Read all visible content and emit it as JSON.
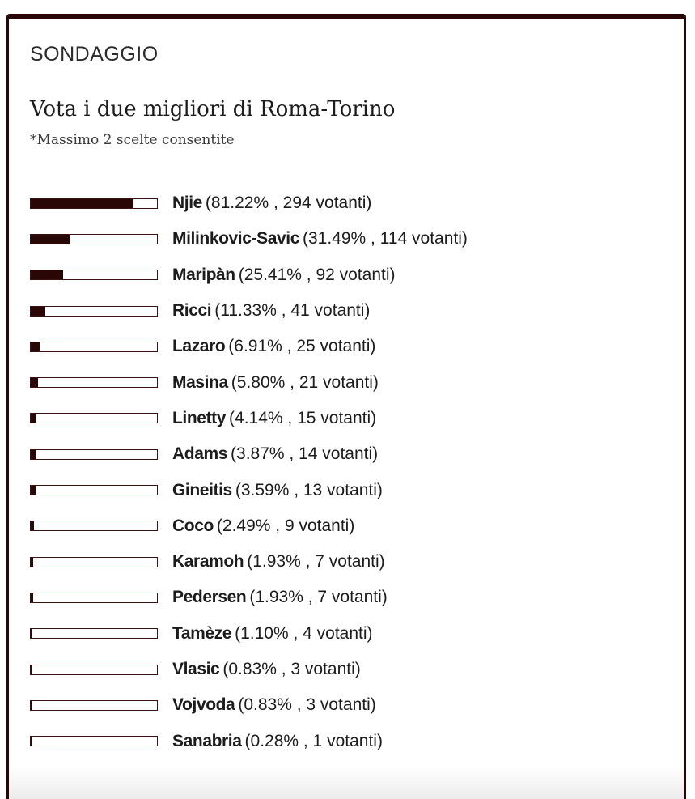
{
  "poll": {
    "label": "SONDAGGIO",
    "title": "Vota i due migliori di Roma-Torino",
    "note": "*Massimo 2 scelte consentite",
    "accent_color": "#2a0707",
    "options": [
      {
        "name": "Njie",
        "percent": 81.22,
        "stats": "(81.22% , 294 votanti)"
      },
      {
        "name": "Milinkovic-Savic",
        "percent": 31.49,
        "stats": "(31.49% , 114 votanti)"
      },
      {
        "name": "Maripàn",
        "percent": 25.41,
        "stats": "(25.41% , 92 votanti)"
      },
      {
        "name": "Ricci",
        "percent": 11.33,
        "stats": "(11.33% , 41 votanti)"
      },
      {
        "name": "Lazaro",
        "percent": 6.91,
        "stats": "(6.91% , 25 votanti)"
      },
      {
        "name": "Masina",
        "percent": 5.8,
        "stats": "(5.80% , 21 votanti)"
      },
      {
        "name": "Linetty",
        "percent": 4.14,
        "stats": "(4.14% , 15 votanti)"
      },
      {
        "name": "Adams",
        "percent": 3.87,
        "stats": "(3.87% , 14 votanti)"
      },
      {
        "name": "Gineitis",
        "percent": 3.59,
        "stats": "(3.59% , 13 votanti)"
      },
      {
        "name": "Coco",
        "percent": 2.49,
        "stats": "(2.49% , 9 votanti)"
      },
      {
        "name": "Karamoh",
        "percent": 1.93,
        "stats": "(1.93% , 7 votanti)"
      },
      {
        "name": "Pedersen",
        "percent": 1.93,
        "stats": "(1.93% , 7 votanti)"
      },
      {
        "name": "Tamèze",
        "percent": 1.1,
        "stats": "(1.10% , 4 votanti)"
      },
      {
        "name": "Vlasic",
        "percent": 0.83,
        "stats": "(0.83% , 3 votanti)"
      },
      {
        "name": "Vojvoda",
        "percent": 0.83,
        "stats": "(0.83% , 3 votanti)"
      },
      {
        "name": "Sanabria",
        "percent": 0.28,
        "stats": "(0.28% , 1 votanti)"
      }
    ]
  }
}
